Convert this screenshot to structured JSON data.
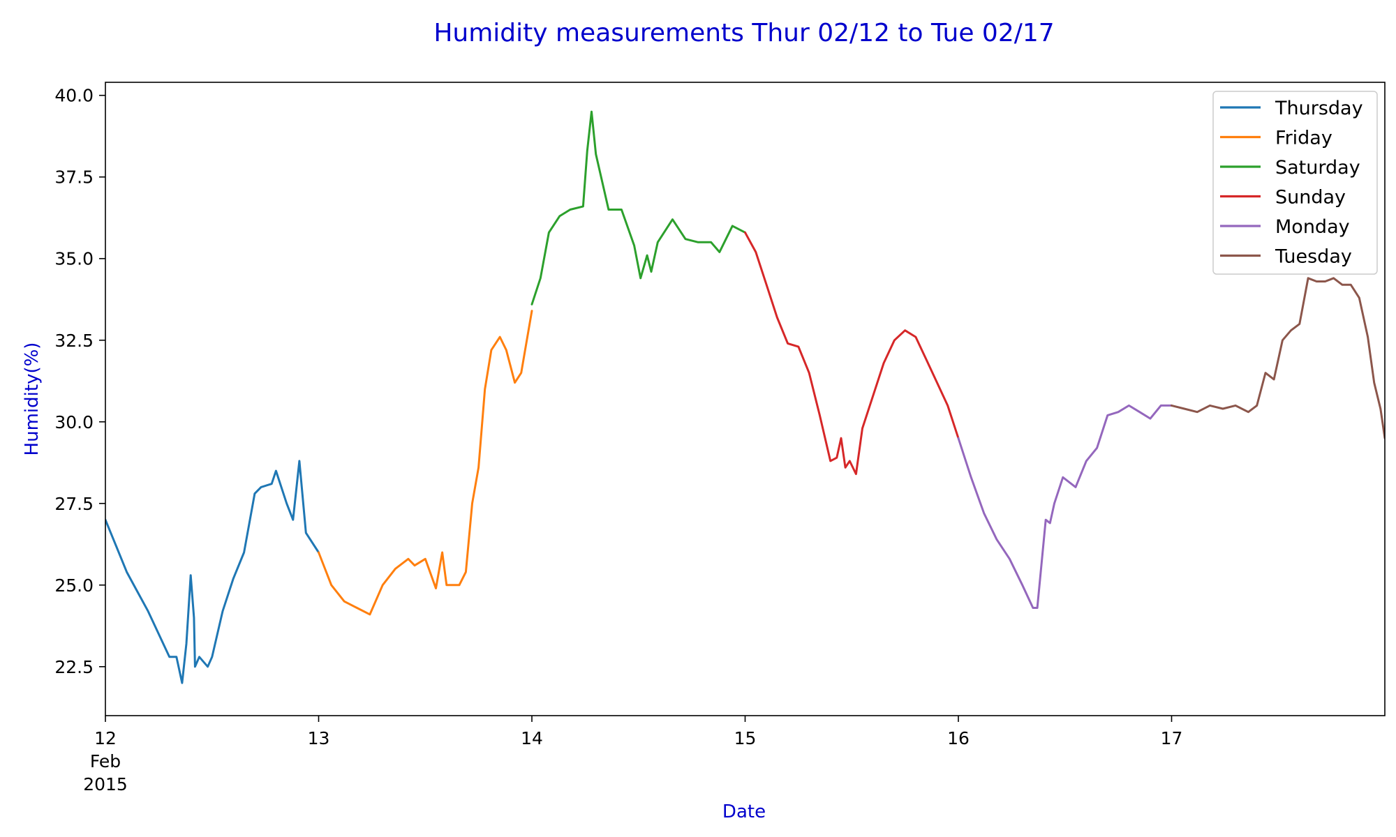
{
  "chart_data": {
    "type": "line",
    "title": "Humidity measurements Thur 02/12 to Tue 02/17",
    "xlabel": "Date",
    "ylabel": "Humidity(%)",
    "xlim": [
      "2015-02-12T00:00",
      "2015-02-18T00:00"
    ],
    "ylim": [
      21,
      40.4
    ],
    "x_ticks": [
      {
        "x": "2015-02-12T00:00",
        "lines": [
          "12",
          "Feb",
          "2015"
        ]
      },
      {
        "x": "2015-02-13T00:00",
        "lines": [
          "13"
        ]
      },
      {
        "x": "2015-02-14T00:00",
        "lines": [
          "14"
        ]
      },
      {
        "x": "2015-02-15T00:00",
        "lines": [
          "15"
        ]
      },
      {
        "x": "2015-02-16T00:00",
        "lines": [
          "16"
        ]
      },
      {
        "x": "2015-02-17T00:00",
        "lines": [
          "17"
        ]
      }
    ],
    "y_ticks": [
      {
        "value": 22.5,
        "label": "22.5"
      },
      {
        "value": 25.0,
        "label": "25.0"
      },
      {
        "value": 27.5,
        "label": "27.5"
      },
      {
        "value": 30.0,
        "label": "30.0"
      },
      {
        "value": 32.5,
        "label": "32.5"
      },
      {
        "value": 35.0,
        "label": "35.0"
      },
      {
        "value": 37.5,
        "label": "37.5"
      },
      {
        "value": 40.0,
        "label": "40.0"
      }
    ],
    "grid": false,
    "legend_position": "top-right",
    "series": [
      {
        "name": "Thursday",
        "color": "#1f77b4",
        "x": [
          "2015-02-12T00:00",
          "2015-02-12T01:12",
          "2015-02-12T02:24",
          "2015-02-12T03:36",
          "2015-02-12T04:48",
          "2015-02-12T06:00",
          "2015-02-12T07:12",
          "2015-02-12T08:00",
          "2015-02-12T08:38",
          "2015-02-12T09:07",
          "2015-02-12T09:36",
          "2015-02-12T09:58",
          "2015-02-12T10:05",
          "2015-02-12T10:34",
          "2015-02-12T11:31",
          "2015-02-12T12:00",
          "2015-02-12T13:12",
          "2015-02-12T14:24",
          "2015-02-12T15:36",
          "2015-02-12T16:48",
          "2015-02-12T17:31",
          "2015-02-12T18:43",
          "2015-02-12T19:12",
          "2015-02-12T20:24",
          "2015-02-12T21:07",
          "2015-02-12T21:50",
          "2015-02-12T22:34",
          "2015-02-12T24:00"
        ],
        "y": [
          27.0,
          26.2,
          25.4,
          24.8,
          24.2,
          23.5,
          22.8,
          22.8,
          22.0,
          23.2,
          25.3,
          24.0,
          22.5,
          22.8,
          22.5,
          22.8,
          24.2,
          25.2,
          26.0,
          27.8,
          28.0,
          28.1,
          28.5,
          27.5,
          27.0,
          28.8,
          26.6,
          26.0
        ]
      },
      {
        "name": "Friday",
        "color": "#ff7f0e",
        "x": [
          "2015-02-13T00:00",
          "2015-02-13T01:26",
          "2015-02-13T02:53",
          "2015-02-13T04:19",
          "2015-02-13T05:46",
          "2015-02-13T07:12",
          "2015-02-13T08:38",
          "2015-02-13T10:05",
          "2015-02-13T10:48",
          "2015-02-13T12:00",
          "2015-02-13T13:12",
          "2015-02-13T13:55",
          "2015-02-13T14:24",
          "2015-02-13T15:50",
          "2015-02-13T16:34",
          "2015-02-13T17:17",
          "2015-02-13T18:00",
          "2015-02-13T18:43",
          "2015-02-13T19:26",
          "2015-02-13T20:24",
          "2015-02-13T21:07",
          "2015-02-13T22:05",
          "2015-02-13T22:48",
          "2015-02-13T24:00"
        ],
        "y": [
          26.0,
          25.0,
          24.5,
          24.3,
          24.1,
          25.0,
          25.5,
          25.8,
          25.6,
          25.8,
          24.9,
          26.0,
          25.0,
          25.0,
          25.4,
          27.5,
          28.6,
          31.0,
          32.2,
          32.6,
          32.2,
          31.2,
          31.5,
          33.4
        ]
      },
      {
        "name": "Saturday",
        "color": "#2ca02c",
        "x": [
          "2015-02-14T00:00",
          "2015-02-14T00:58",
          "2015-02-14T01:55",
          "2015-02-14T03:07",
          "2015-02-14T04:19",
          "2015-02-14T05:46",
          "2015-02-14T06:14",
          "2015-02-14T06:43",
          "2015-02-14T07:12",
          "2015-02-14T08:38",
          "2015-02-14T10:05",
          "2015-02-14T11:31",
          "2015-02-14T12:14",
          "2015-02-14T12:58",
          "2015-02-14T13:26",
          "2015-02-14T14:10",
          "2015-02-14T15:50",
          "2015-02-14T17:17",
          "2015-02-14T18:43",
          "2015-02-14T20:10",
          "2015-02-14T21:07",
          "2015-02-14T22:34",
          "2015-02-14T24:00"
        ],
        "y": [
          33.6,
          34.4,
          35.8,
          36.3,
          36.5,
          36.6,
          38.3,
          39.5,
          38.2,
          36.5,
          36.5,
          35.4,
          34.4,
          35.1,
          34.6,
          35.5,
          36.2,
          35.6,
          35.5,
          35.5,
          35.2,
          36.0,
          35.8
        ]
      },
      {
        "name": "Sunday",
        "color": "#d62728",
        "x": [
          "2015-02-15T00:00",
          "2015-02-15T01:12",
          "2015-02-15T02:24",
          "2015-02-15T03:36",
          "2015-02-15T04:48",
          "2015-02-15T06:00",
          "2015-02-15T07:12",
          "2015-02-15T08:24",
          "2015-02-15T09:36",
          "2015-02-15T10:19",
          "2015-02-15T10:48",
          "2015-02-15T11:17",
          "2015-02-15T11:46",
          "2015-02-15T12:29",
          "2015-02-15T13:12",
          "2015-02-15T14:24",
          "2015-02-15T15:36",
          "2015-02-15T16:48",
          "2015-02-15T18:00",
          "2015-02-15T19:12",
          "2015-02-15T20:24",
          "2015-02-15T21:36",
          "2015-02-15T22:48",
          "2015-02-15T24:00"
        ],
        "y": [
          35.8,
          35.2,
          34.2,
          33.2,
          32.4,
          32.3,
          31.5,
          30.2,
          28.8,
          28.9,
          29.5,
          28.6,
          28.8,
          28.4,
          29.8,
          30.8,
          31.8,
          32.5,
          32.8,
          32.6,
          31.9,
          31.2,
          30.5,
          29.5
        ]
      },
      {
        "name": "Monday",
        "color": "#9467bd",
        "x": [
          "2015-02-16T00:00",
          "2015-02-16T01:26",
          "2015-02-16T02:53",
          "2015-02-16T04:19",
          "2015-02-16T05:46",
          "2015-02-16T07:12",
          "2015-02-16T08:24",
          "2015-02-16T08:53",
          "2015-02-16T09:50",
          "2015-02-16T10:19",
          "2015-02-16T10:48",
          "2015-02-16T11:46",
          "2015-02-16T13:12",
          "2015-02-16T14:24",
          "2015-02-16T15:36",
          "2015-02-16T16:48",
          "2015-02-16T18:00",
          "2015-02-16T19:12",
          "2015-02-16T20:24",
          "2015-02-16T21:36",
          "2015-02-16T22:48",
          "2015-02-16T24:00"
        ],
        "y": [
          29.5,
          28.3,
          27.2,
          26.4,
          25.8,
          25.0,
          24.3,
          24.3,
          27.0,
          26.9,
          27.5,
          28.3,
          28.0,
          28.8,
          29.2,
          30.2,
          30.3,
          30.5,
          30.3,
          30.1,
          30.5,
          30.5
        ]
      },
      {
        "name": "Tuesday",
        "color": "#8c564b",
        "x": [
          "2015-02-17T00:00",
          "2015-02-17T01:26",
          "2015-02-17T02:53",
          "2015-02-17T04:19",
          "2015-02-17T05:46",
          "2015-02-17T07:12",
          "2015-02-17T08:38",
          "2015-02-17T09:36",
          "2015-02-17T10:34",
          "2015-02-17T11:31",
          "2015-02-17T12:29",
          "2015-02-17T13:26",
          "2015-02-17T14:24",
          "2015-02-17T15:22",
          "2015-02-17T16:19",
          "2015-02-17T17:17",
          "2015-02-17T18:14",
          "2015-02-17T19:12",
          "2015-02-17T20:10",
          "2015-02-17T21:07",
          "2015-02-17T22:05",
          "2015-02-17T22:48",
          "2015-02-17T23:31",
          "2015-02-17T24:00"
        ],
        "y": [
          30.5,
          30.4,
          30.3,
          30.5,
          30.4,
          30.5,
          30.3,
          30.5,
          31.5,
          31.3,
          32.5,
          32.8,
          33.0,
          34.4,
          34.3,
          34.3,
          34.4,
          34.2,
          34.2,
          33.8,
          32.6,
          31.2,
          30.4,
          29.5
        ]
      }
    ]
  }
}
